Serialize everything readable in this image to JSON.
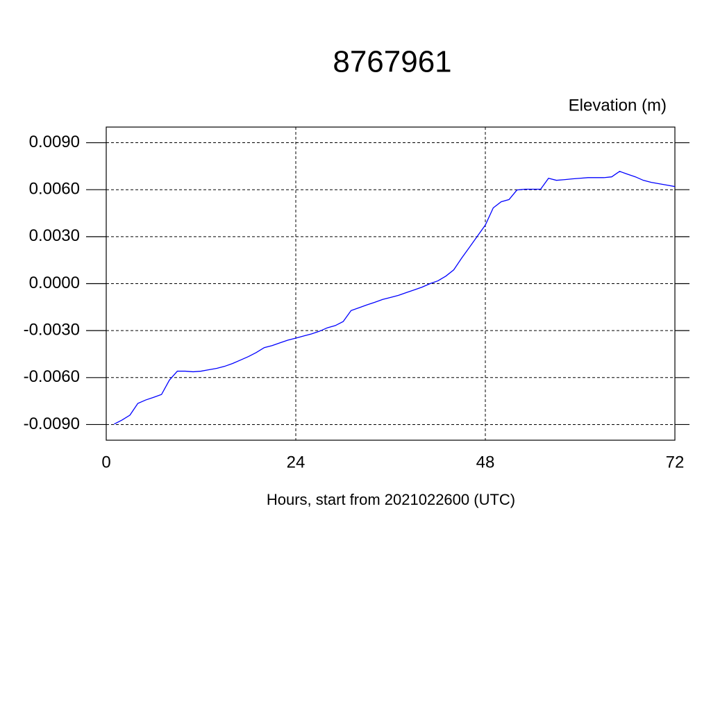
{
  "chart_data": {
    "type": "line",
    "title": "8767961",
    "y_label": "Elevation (m)",
    "x_label": "Hours, start from 2021022600 (UTC)",
    "x": [
      1,
      2,
      3,
      4,
      5,
      6,
      7,
      8,
      9,
      10,
      11,
      12,
      13,
      14,
      15,
      16,
      17,
      18,
      19,
      20,
      21,
      22,
      23,
      24,
      25,
      26,
      27,
      28,
      29,
      30,
      31,
      32,
      33,
      34,
      35,
      36,
      37,
      38,
      39,
      40,
      41,
      42,
      43,
      44,
      45,
      46,
      47,
      48,
      49,
      50,
      51,
      52,
      53,
      54,
      55,
      56,
      57,
      58,
      59,
      60,
      61,
      62,
      63,
      64,
      65,
      66,
      67,
      68,
      69,
      70,
      71,
      72
    ],
    "series": [
      {
        "color": "#0000ff",
        "values": [
          -0.00897,
          -0.00871,
          -0.0084,
          -0.00765,
          -0.00743,
          -0.00726,
          -0.00708,
          -0.00616,
          -0.00559,
          -0.00559,
          -0.00563,
          -0.00559,
          -0.0055,
          -0.00541,
          -0.00528,
          -0.0051,
          -0.00488,
          -0.00466,
          -0.0044,
          -0.00409,
          -0.00396,
          -0.00378,
          -0.00361,
          -0.00348,
          -0.00334,
          -0.00321,
          -0.00304,
          -0.00282,
          -0.00268,
          -0.00242,
          -0.00172,
          -0.00154,
          -0.00136,
          -0.00119,
          -0.00101,
          -0.00088,
          -0.00075,
          -0.00057,
          -0.0004,
          -0.00022,
          0,
          0.00018,
          0.00048,
          0.00088,
          0.00163,
          0.00233,
          0.00304,
          0.00374,
          0.00484,
          0.00523,
          0.00537,
          0.00598,
          0.00603,
          0.00603,
          0.00603,
          0.00673,
          0.0066,
          0.00664,
          0.00669,
          0.00673,
          0.00677,
          0.00677,
          0.00677,
          0.00682,
          0.00717,
          0.00699,
          0.00682,
          0.0066,
          0.00647,
          0.00638,
          0.00629,
          0.0062
        ]
      }
    ],
    "xlim": [
      0,
      72
    ],
    "xticks": [
      0,
      24,
      48,
      72
    ],
    "ylim": [
      -0.01,
      0.01
    ],
    "yticks": [
      {
        "value": -0.009,
        "label": "-0.0090"
      },
      {
        "value": -0.006,
        "label": "-0.0060"
      },
      {
        "value": -0.003,
        "label": "-0.0030"
      },
      {
        "value": 0,
        "label": "0.0000"
      },
      {
        "value": 0.003,
        "label": "0.0030"
      },
      {
        "value": 0.006,
        "label": "0.0060"
      },
      {
        "value": 0.009,
        "label": "0.0090"
      }
    ],
    "grid": true
  }
}
